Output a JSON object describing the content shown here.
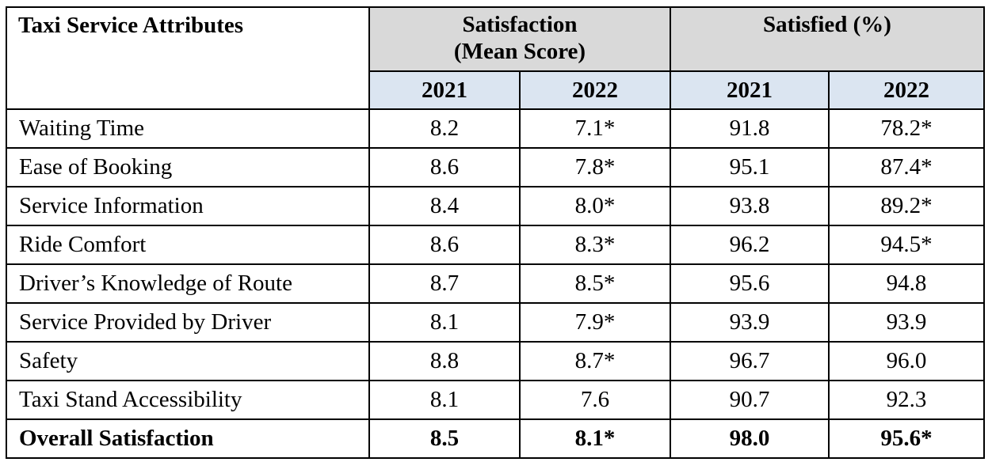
{
  "table": {
    "header": {
      "attribute": "Taxi Service Attributes",
      "group_mean_line1": "Satisfaction",
      "group_mean_line2": "(Mean Score)",
      "group_pct": "Satisfied (%)",
      "years": [
        "2021",
        "2022",
        "2021",
        "2022"
      ]
    },
    "rows": [
      {
        "label": "Waiting Time",
        "mean_2021": "8.2",
        "mean_2022": "7.1*",
        "pct_2021": "91.8",
        "pct_2022": "78.2*"
      },
      {
        "label": "Ease of Booking",
        "mean_2021": "8.6",
        "mean_2022": "7.8*",
        "pct_2021": "95.1",
        "pct_2022": "87.4*"
      },
      {
        "label": "Service Information",
        "mean_2021": "8.4",
        "mean_2022": "8.0*",
        "pct_2021": "93.8",
        "pct_2022": "89.2*"
      },
      {
        "label": "Ride Comfort",
        "mean_2021": "8.6",
        "mean_2022": "8.3*",
        "pct_2021": "96.2",
        "pct_2022": "94.5*"
      },
      {
        "label": "Driver’s Knowledge of Route",
        "mean_2021": "8.7",
        "mean_2022": "8.5*",
        "pct_2021": "95.6",
        "pct_2022": "94.8"
      },
      {
        "label": "Service Provided by Driver",
        "mean_2021": "8.1",
        "mean_2022": "7.9*",
        "pct_2021": "93.9",
        "pct_2022": "93.9"
      },
      {
        "label": "Safety",
        "mean_2021": "8.8",
        "mean_2022": "8.7*",
        "pct_2021": "96.7",
        "pct_2022": "96.0"
      },
      {
        "label": "Taxi Stand Accessibility",
        "mean_2021": "8.1",
        "mean_2022": "7.6",
        "pct_2021": "90.7",
        "pct_2022": "92.3"
      },
      {
        "label": "Overall Satisfaction",
        "mean_2021": "8.5",
        "mean_2022": "8.1*",
        "pct_2021": "98.0",
        "pct_2022": "95.6*"
      }
    ]
  },
  "colors": {
    "group_header_bg": "#d9d9d9",
    "year_header_bg": "#dbe5f1"
  }
}
